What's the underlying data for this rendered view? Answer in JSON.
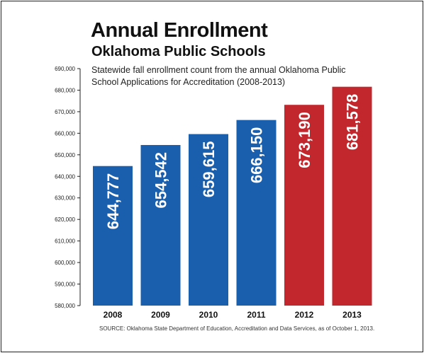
{
  "header": {
    "title": "Annual Enrollment",
    "subtitle": "Oklahoma Public Schools",
    "note": "Statewide fall enrollment count from the annual Oklahoma Public School Applications for Accreditation (2008-2013)"
  },
  "source": "SOURCE: Oklahoma State Department of Education, Accreditation and Data Services, as of October 1, 2013.",
  "chart_data": {
    "type": "bar",
    "title": "Annual Enrollment",
    "subtitle": "Oklahoma Public Schools",
    "categories": [
      "2008",
      "2009",
      "2010",
      "2011",
      "2012",
      "2013"
    ],
    "values": [
      644777,
      654542,
      659615,
      666150,
      673190,
      681578
    ],
    "value_labels": [
      "644,777",
      "654,542",
      "659,615",
      "666,150",
      "673,190",
      "681,578"
    ],
    "bar_colors": [
      "#1a5fae",
      "#1a5fae",
      "#1a5fae",
      "#1a5fae",
      "#c1272d",
      "#c1272d"
    ],
    "ylim": [
      580000,
      690000
    ],
    "yticks": [
      580000,
      590000,
      600000,
      610000,
      620000,
      630000,
      640000,
      650000,
      660000,
      670000,
      680000,
      690000
    ],
    "ytick_labels": [
      "580,000",
      "590,000",
      "600,000",
      "610,000",
      "620,000",
      "630,000",
      "640,000",
      "650,000",
      "660,000",
      "670,000",
      "680,000",
      "690,000"
    ],
    "xlabel": "",
    "ylabel": "",
    "grid": false,
    "legend": "none"
  }
}
